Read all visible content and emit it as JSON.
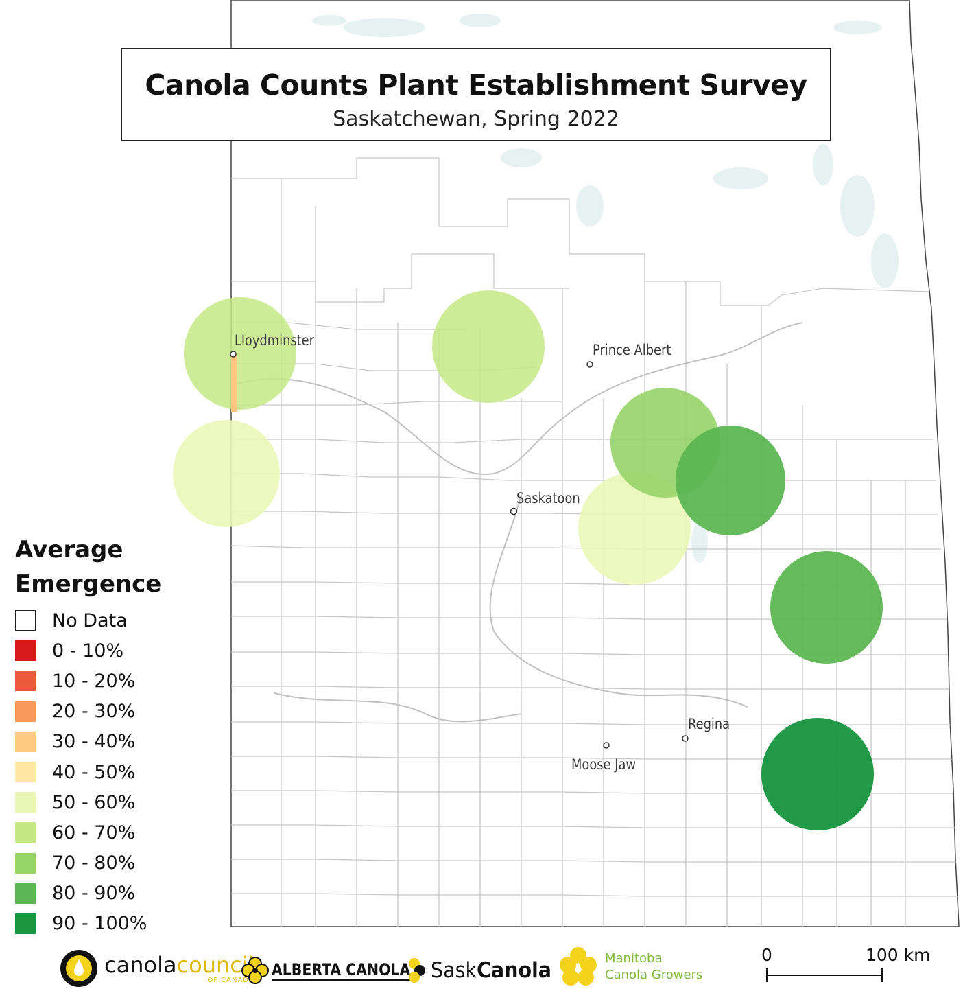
{
  "title": "Canola Counts Plant Establishment Survey",
  "subtitle": "Saskatchewan, Spring 2022",
  "legend": {
    "title_line1": "Average",
    "title_line2": "Emergence",
    "items": [
      {
        "label": "No Data",
        "color": "#ffffff"
      },
      {
        "label": "0 - 10%",
        "color": "#d7191c"
      },
      {
        "label": "10 - 20%",
        "color": "#ea5a3b"
      },
      {
        "label": "20 - 30%",
        "color": "#f89a5c"
      },
      {
        "label": "30 - 40%",
        "color": "#fec980"
      },
      {
        "label": "40 - 50%",
        "color": "#ffe8a4"
      },
      {
        "label": "50 - 60%",
        "color": "#ebf7b7"
      },
      {
        "label": "60 - 70%",
        "color": "#c6e786"
      },
      {
        "label": "70 - 80%",
        "color": "#96d468"
      },
      {
        "label": "80 - 90%",
        "color": "#5db653"
      },
      {
        "label": "90 - 100%",
        "color": "#1a9641"
      }
    ]
  },
  "cities": {
    "lloydminster": "Lloydminster",
    "prince_albert": "Prince Albert",
    "saskatoon": "Saskatoon",
    "regina": "Regina",
    "moose_jaw": "Moose Jaw"
  },
  "scale": {
    "start_label": "0",
    "end_label": "100 km"
  },
  "logos": {
    "canola_council_a": "canola",
    "canola_council_b": "council",
    "canola_council_c": "OF CANADA",
    "alberta_canola": "ALBERTA CANOLA",
    "sask_canola_a": "Sask",
    "sask_canola_b": "Canola",
    "manitoba_a": "Manitoba",
    "manitoba_b": "Canola Growers"
  },
  "colors": {
    "water": "#e9f3f3",
    "boundary": "#c8c8c8",
    "border": "#333333"
  }
}
